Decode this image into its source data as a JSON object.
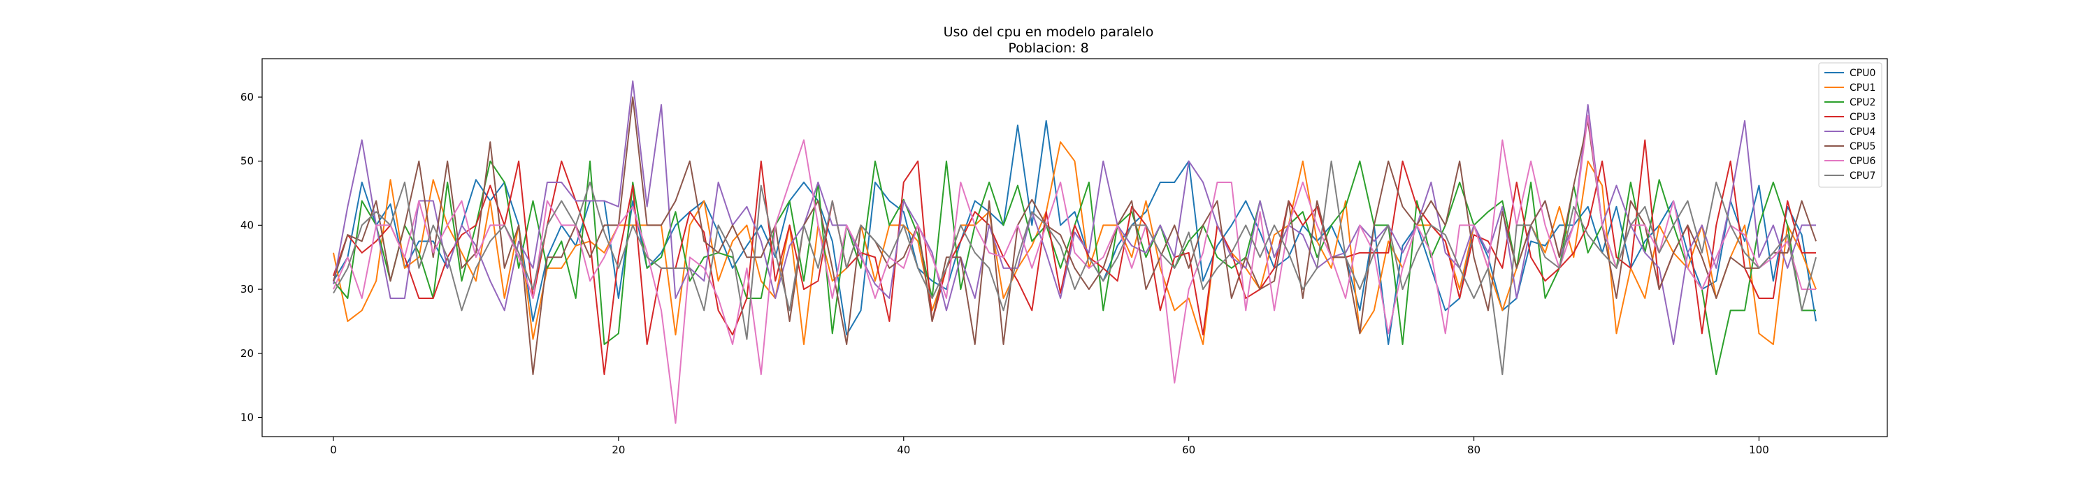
{
  "chart_data": {
    "type": "line",
    "title": "Uso del cpu en modelo paralelo",
    "subtitle": "Poblacion: 8",
    "xlabel": "",
    "ylabel": "",
    "xlim": [
      -5,
      109
    ],
    "ylim": [
      7,
      66
    ],
    "xticks": [
      0,
      20,
      40,
      60,
      80,
      100
    ],
    "yticks": [
      10,
      20,
      30,
      40,
      50,
      60
    ],
    "grid": false,
    "legend_position": "top-right",
    "series": [
      {
        "name": "CPU0",
        "color": "#1f77b4",
        "values": [
          31.3,
          35.0,
          46.7,
          40.0,
          43.3,
          33.3,
          37.5,
          37.5,
          33.3,
          40.0,
          47.1,
          43.8,
          46.7,
          40.0,
          25.0,
          35.0,
          40.0,
          36.8,
          43.8,
          43.8,
          28.6,
          43.8,
          33.3,
          35.7,
          40.0,
          42.1,
          43.8,
          38.9,
          33.3,
          36.8,
          40.0,
          35.0,
          43.8,
          46.7,
          43.8,
          37.5,
          22.9,
          26.7,
          46.7,
          43.8,
          42.1,
          33.3,
          31.3,
          30.0,
          37.5,
          43.8,
          42.1,
          40.0,
          55.6,
          40.0,
          56.3,
          40.0,
          42.1,
          35.0,
          31.3,
          36.8,
          40.0,
          42.1,
          46.7,
          46.7,
          50.0,
          31.3,
          36.8,
          40.0,
          43.8,
          38.9,
          33.3,
          35.0,
          40.0,
          37.5,
          40.0,
          35.0,
          26.7,
          40.0,
          21.4,
          36.8,
          40.0,
          33.3,
          26.7,
          28.6,
          40.0,
          35.0,
          26.7,
          28.6,
          37.5,
          36.8,
          40.0,
          40.0,
          42.9,
          35.7,
          42.9,
          33.3,
          37.5,
          40.0,
          43.8,
          35.7,
          30.0,
          31.3,
          43.8,
          37.5,
          46.2,
          31.3,
          42.9,
          38.5,
          25.0
        ]
      },
      {
        "name": "CPU1",
        "color": "#ff7f0e",
        "values": [
          35.7,
          25.0,
          26.7,
          31.3,
          47.1,
          33.3,
          35.0,
          47.1,
          40.0,
          35.7,
          31.3,
          43.8,
          28.6,
          40.0,
          22.2,
          33.3,
          33.3,
          36.8,
          37.5,
          35.7,
          40.0,
          40.0,
          40.0,
          40.0,
          22.9,
          40.0,
          43.8,
          31.3,
          37.5,
          40.0,
          31.3,
          28.6,
          40.0,
          21.4,
          40.0,
          31.3,
          33.3,
          40.0,
          31.3,
          40.0,
          40.0,
          37.5,
          26.7,
          33.3,
          40.0,
          40.0,
          42.1,
          28.6,
          33.3,
          36.8,
          42.1,
          53.0,
          50.0,
          33.3,
          40.0,
          40.0,
          35.0,
          43.8,
          33.3,
          26.7,
          28.6,
          21.4,
          40.0,
          35.7,
          33.3,
          30.0,
          38.5,
          40.0,
          50.0,
          37.5,
          33.3,
          43.8,
          23.1,
          26.7,
          37.5,
          33.3,
          40.0,
          40.0,
          37.5,
          30.0,
          40.0,
          33.3,
          26.7,
          33.3,
          40.0,
          35.7,
          42.9,
          35.0,
          50.0,
          46.2,
          23.1,
          33.3,
          28.6,
          40.0,
          35.7,
          33.3,
          40.0,
          28.6,
          35.0,
          40.0,
          23.1,
          21.4,
          40.0,
          35.7,
          30.0
        ]
      },
      {
        "name": "CPU2",
        "color": "#2ca02c",
        "values": [
          31.3,
          28.6,
          43.8,
          40.0,
          31.3,
          40.0,
          35.7,
          28.6,
          46.7,
          31.3,
          40.0,
          50.0,
          46.7,
          33.3,
          43.8,
          33.3,
          37.5,
          28.6,
          50.0,
          21.4,
          23.1,
          46.7,
          33.3,
          35.0,
          42.1,
          31.3,
          35.0,
          35.7,
          35.0,
          28.6,
          28.6,
          40.0,
          43.8,
          31.3,
          46.7,
          23.1,
          40.0,
          33.3,
          50.0,
          40.0,
          44.0,
          38.5,
          28.6,
          50.0,
          30.0,
          40.0,
          46.7,
          40.0,
          46.2,
          37.5,
          40.0,
          33.3,
          40.0,
          46.7,
          26.7,
          40.0,
          42.1,
          35.0,
          40.0,
          33.3,
          37.5,
          40.0,
          35.0,
          33.3,
          35.0,
          43.8,
          35.0,
          40.0,
          42.1,
          35.0,
          40.0,
          42.9,
          50.0,
          40.0,
          40.0,
          21.4,
          43.8,
          35.0,
          40.0,
          46.7,
          40.0,
          42.1,
          43.8,
          33.3,
          46.7,
          28.6,
          33.3,
          46.2,
          35.7,
          40.0,
          33.3,
          46.7,
          35.7,
          47.1,
          40.0,
          33.3,
          30.0,
          16.7,
          26.7,
          26.7,
          40.0,
          46.7,
          40.0,
          26.7,
          26.7
        ]
      },
      {
        "name": "CPU3",
        "color": "#d62728",
        "values": [
          32.1,
          38.5,
          35.7,
          37.5,
          40.0,
          35.0,
          28.6,
          28.6,
          35.0,
          38.5,
          40.0,
          46.2,
          40.0,
          50.0,
          28.6,
          40.0,
          50.0,
          43.8,
          37.5,
          16.7,
          35.0,
          46.2,
          21.4,
          33.3,
          33.3,
          42.1,
          38.9,
          26.7,
          22.9,
          28.6,
          50.0,
          31.3,
          40.0,
          30.0,
          31.3,
          43.8,
          33.3,
          35.7,
          35.0,
          25.0,
          46.7,
          50.0,
          25.0,
          33.3,
          37.5,
          42.1,
          40.0,
          35.0,
          31.3,
          26.7,
          42.1,
          29.4,
          40.0,
          35.0,
          33.3,
          31.3,
          42.9,
          40.0,
          26.7,
          35.0,
          35.7,
          22.9,
          40.0,
          35.7,
          28.6,
          30.0,
          33.3,
          43.8,
          40.0,
          42.9,
          35.0,
          35.0,
          35.7,
          35.7,
          35.7,
          50.0,
          42.9,
          40.0,
          37.5,
          28.6,
          38.5,
          37.5,
          33.3,
          46.7,
          35.0,
          31.3,
          33.3,
          35.7,
          40.0,
          50.0,
          35.0,
          33.3,
          53.3,
          30.0,
          35.7,
          40.0,
          23.1,
          40.0,
          50.0,
          33.3,
          28.6,
          28.6,
          43.8,
          35.7,
          35.7
        ]
      },
      {
        "name": "CPU4",
        "color": "#9467bd",
        "values": [
          30.8,
          42.9,
          53.3,
          40.0,
          28.6,
          28.6,
          43.8,
          43.8,
          33.3,
          40.0,
          36.8,
          31.3,
          26.7,
          37.5,
          33.3,
          46.7,
          46.7,
          43.8,
          43.8,
          43.8,
          42.9,
          62.5,
          42.9,
          58.8,
          28.6,
          33.3,
          31.3,
          46.7,
          40.0,
          42.9,
          37.5,
          28.6,
          36.8,
          40.0,
          46.7,
          40.0,
          40.0,
          35.0,
          30.8,
          28.6,
          43.8,
          40.0,
          35.7,
          26.7,
          35.0,
          28.6,
          40.0,
          33.3,
          33.3,
          42.1,
          35.7,
          28.6,
          38.9,
          35.7,
          50.0,
          40.0,
          36.8,
          35.7,
          40.0,
          35.0,
          50.0,
          46.7,
          40.0,
          35.0,
          33.3,
          43.8,
          35.0,
          40.0,
          38.5,
          33.3,
          35.0,
          35.7,
          40.0,
          37.5,
          40.0,
          35.7,
          40.0,
          46.7,
          35.7,
          33.3,
          40.0,
          35.7,
          42.9,
          28.6,
          40.0,
          43.8,
          35.0,
          40.0,
          58.8,
          40.0,
          46.2,
          40.0,
          35.7,
          33.3,
          21.4,
          35.7,
          40.0,
          33.3,
          43.8,
          56.3,
          35.0,
          40.0,
          33.3,
          40.0,
          40.0
        ]
      },
      {
        "name": "CPU5",
        "color": "#8c564b",
        "values": [
          31.3,
          38.5,
          37.5,
          43.8,
          31.3,
          40.0,
          50.0,
          35.0,
          50.0,
          33.3,
          35.7,
          53.0,
          33.3,
          40.0,
          16.7,
          35.0,
          35.0,
          40.0,
          35.0,
          40.0,
          40.0,
          60.0,
          40.0,
          40.0,
          43.8,
          50.0,
          37.5,
          35.7,
          40.0,
          35.0,
          35.0,
          40.0,
          25.0,
          40.0,
          43.8,
          33.3,
          21.4,
          40.0,
          37.5,
          33.3,
          35.0,
          40.0,
          25.0,
          35.0,
          35.0,
          21.4,
          43.8,
          21.4,
          40.0,
          44.0,
          40.0,
          38.5,
          33.3,
          30.0,
          33.3,
          40.0,
          43.8,
          30.0,
          35.0,
          40.0,
          33.3,
          40.0,
          43.8,
          28.6,
          35.0,
          30.0,
          31.3,
          43.8,
          28.6,
          43.8,
          35.0,
          35.0,
          23.1,
          40.0,
          50.0,
          42.9,
          40.0,
          43.8,
          40.0,
          50.0,
          35.0,
          26.7,
          42.1,
          33.3,
          40.0,
          43.8,
          35.0,
          46.2,
          56.3,
          40.0,
          28.6,
          43.8,
          40.0,
          30.0,
          35.7,
          40.0,
          35.0,
          28.6,
          35.0,
          33.3,
          33.3,
          35.7,
          35.7,
          43.8,
          37.5
        ]
      },
      {
        "name": "CPU6",
        "color": "#e377c2",
        "values": [
          30.0,
          35.0,
          28.6,
          40.0,
          40.0,
          35.0,
          43.8,
          35.7,
          40.0,
          43.8,
          35.0,
          40.0,
          40.0,
          35.0,
          28.6,
          43.8,
          40.0,
          40.0,
          31.3,
          35.0,
          40.0,
          42.9,
          35.7,
          26.7,
          9.1,
          35.0,
          33.3,
          28.6,
          21.4,
          33.3,
          16.7,
          40.0,
          46.7,
          53.3,
          40.0,
          28.6,
          40.0,
          35.7,
          28.6,
          35.0,
          33.3,
          40.0,
          35.0,
          28.6,
          46.7,
          40.0,
          35.7,
          35.0,
          40.0,
          33.3,
          40.0,
          46.7,
          35.7,
          33.3,
          35.0,
          40.0,
          33.3,
          40.0,
          35.7,
          15.4,
          30.0,
          35.7,
          46.7,
          46.7,
          26.7,
          42.1,
          26.7,
          40.0,
          46.7,
          40.0,
          35.0,
          28.6,
          40.0,
          35.7,
          23.1,
          33.3,
          40.0,
          35.7,
          23.1,
          40.0,
          40.0,
          33.3,
          53.3,
          40.0,
          50.0,
          40.0,
          33.3,
          40.0,
          57.1,
          40.0,
          33.3,
          40.0,
          40.0,
          35.7,
          43.8,
          33.3,
          30.0,
          35.0,
          40.0,
          38.5,
          33.3,
          35.0,
          37.5,
          30.0,
          30.0
        ]
      },
      {
        "name": "CPU7",
        "color": "#7f7f7f",
        "values": [
          29.4,
          33.3,
          40.0,
          42.1,
          40.0,
          46.7,
          33.3,
          40.0,
          35.0,
          26.7,
          33.3,
          37.5,
          40.0,
          35.7,
          30.0,
          40.0,
          43.8,
          40.0,
          46.7,
          38.9,
          33.3,
          40.0,
          35.0,
          33.3,
          33.3,
          33.3,
          26.7,
          40.0,
          35.7,
          22.2,
          46.2,
          35.7,
          26.7,
          40.0,
          33.3,
          43.8,
          33.3,
          40.0,
          37.5,
          35.0,
          40.0,
          33.3,
          28.6,
          33.3,
          40.0,
          35.7,
          33.3,
          26.7,
          35.0,
          42.1,
          40.0,
          36.8,
          30.0,
          35.0,
          31.3,
          35.0,
          40.0,
          40.0,
          35.7,
          33.3,
          38.9,
          30.0,
          33.3,
          35.7,
          40.0,
          35.0,
          40.0,
          35.7,
          30.0,
          33.3,
          50.0,
          35.0,
          30.0,
          35.7,
          40.0,
          30.0,
          35.7,
          40.0,
          38.5,
          33.3,
          28.6,
          33.3,
          16.7,
          40.0,
          40.0,
          35.0,
          33.3,
          42.9,
          38.5,
          35.7,
          33.3,
          40.0,
          42.9,
          35.7,
          40.0,
          43.8,
          35.7,
          46.7,
          40.0,
          35.7,
          33.3,
          35.7,
          38.5,
          26.7,
          35.0
        ]
      }
    ]
  }
}
